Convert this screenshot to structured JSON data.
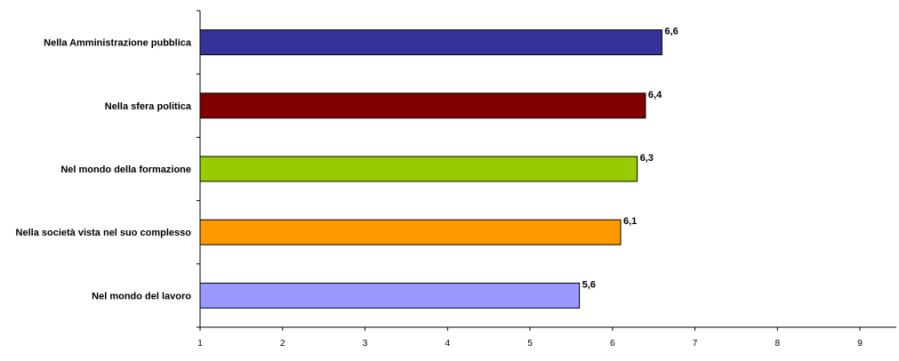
{
  "chart_data": {
    "type": "bar",
    "orientation": "horizontal",
    "title": "",
    "xlabel": "",
    "ylabel": "",
    "xlim": [
      1,
      9
    ],
    "grid": false,
    "legend": "none",
    "x_ticks": [
      "1",
      "2",
      "3",
      "4",
      "5",
      "6",
      "7",
      "8",
      "9"
    ],
    "categories": [
      "Nella Amministrazione pubblica",
      "Nella sfera politica",
      "Nel mondo della formazione",
      "Nella società vista nel suo complesso",
      "Nel mondo del lavoro"
    ],
    "values": [
      6.6,
      6.4,
      6.3,
      6.1,
      5.6
    ],
    "value_labels": [
      "6,6",
      "6,4",
      "6,3",
      "6,1",
      "5,6"
    ],
    "colors": [
      "#333399",
      "#800000",
      "#99CC00",
      "#FF9900",
      "#9999FF"
    ]
  }
}
